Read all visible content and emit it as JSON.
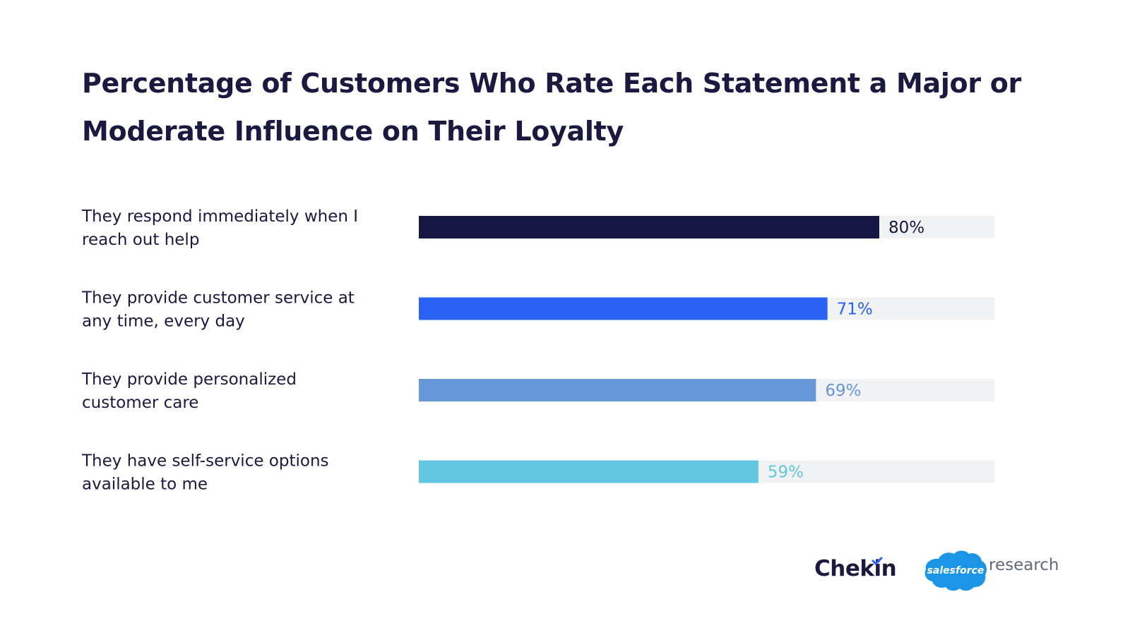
{
  "chart_data": {
    "type": "bar",
    "orientation": "horizontal",
    "title": "Percentage of Customers Who Rate Each Statement a Major or Moderate Influence on Their Loyalty",
    "categories": [
      [
        "They respond immediately when I",
        "reach out help"
      ],
      [
        "They provide customer service at",
        "any time, every day"
      ],
      [
        "They provide personalized",
        "customer care"
      ],
      [
        "They have self-service options",
        "available to me"
      ]
    ],
    "values": [
      80,
      71,
      69,
      59
    ],
    "value_labels": [
      "80%",
      "71%",
      "69%",
      "59%"
    ],
    "bar_colors": [
      "#171744",
      "#2962f5",
      "#6496d8",
      "#62c6e0"
    ],
    "label_colors": [
      "#171744",
      "#2962f5",
      "#6496d8",
      "#62c6e0"
    ],
    "track_color": "#f1f2f4",
    "xlim": [
      0,
      100
    ],
    "xlabel": "",
    "ylabel": "",
    "grid": false,
    "legend": "none"
  },
  "logos": {
    "chekin": "Chekin",
    "salesforce_cloud": "salesforce",
    "salesforce_suffix": "research"
  },
  "colors": {
    "title": "#1a1a40",
    "salesforce_blue": "#1b96e6",
    "chekin_check": "#2962f5"
  }
}
